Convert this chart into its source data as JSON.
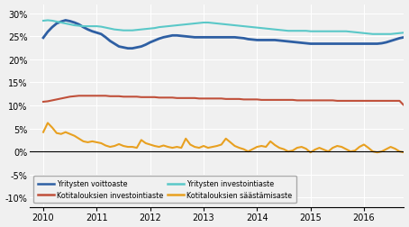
{
  "ylim": [
    -0.12,
    0.32
  ],
  "yticks": [
    -0.1,
    -0.05,
    0.0,
    0.05,
    0.1,
    0.15,
    0.2,
    0.25,
    0.3
  ],
  "xlim": [
    2009.75,
    2016.75
  ],
  "xticks": [
    2010,
    2011,
    2012,
    2013,
    2014,
    2015,
    2016
  ],
  "bg_color": "#f0f0f0",
  "grid_color": "#ffffff",
  "series": {
    "Yritysten voittoaste": {
      "color": "#2e5fa3",
      "lw": 2.0,
      "data": [
        0.247,
        0.26,
        0.27,
        0.278,
        0.282,
        0.285,
        0.283,
        0.28,
        0.276,
        0.27,
        0.265,
        0.261,
        0.258,
        0.255,
        0.248,
        0.24,
        0.234,
        0.228,
        0.226,
        0.224,
        0.224,
        0.226,
        0.228,
        0.232,
        0.237,
        0.241,
        0.245,
        0.248,
        0.25,
        0.252,
        0.252,
        0.251,
        0.25,
        0.249,
        0.248,
        0.248,
        0.248,
        0.248,
        0.248,
        0.248,
        0.248,
        0.248,
        0.248,
        0.248,
        0.247,
        0.246,
        0.244,
        0.243,
        0.242,
        0.242,
        0.242,
        0.242,
        0.242,
        0.241,
        0.24,
        0.239,
        0.238,
        0.237,
        0.236,
        0.235,
        0.234,
        0.234,
        0.234,
        0.234,
        0.234,
        0.234,
        0.234,
        0.234,
        0.234,
        0.234,
        0.234,
        0.234,
        0.234,
        0.234,
        0.234,
        0.234,
        0.235,
        0.237,
        0.24,
        0.243,
        0.246,
        0.248,
        0.249,
        0.25,
        0.25,
        0.25,
        0.25,
        0.25,
        0.25,
        0.25,
        0.25,
        0.25,
        0.25,
        0.25,
        0.251,
        0.252,
        0.253,
        0.254,
        0.255,
        0.256,
        0.257,
        0.258,
        0.259,
        0.26,
        0.261,
        0.262,
        0.263,
        0.264
      ]
    },
    "Yritysten investointiaste": {
      "color": "#5ac8c8",
      "lw": 1.5,
      "data": [
        0.284,
        0.285,
        0.284,
        0.282,
        0.28,
        0.278,
        0.276,
        0.274,
        0.273,
        0.272,
        0.272,
        0.272,
        0.272,
        0.271,
        0.269,
        0.267,
        0.265,
        0.264,
        0.263,
        0.263,
        0.263,
        0.264,
        0.265,
        0.266,
        0.267,
        0.268,
        0.27,
        0.271,
        0.272,
        0.273,
        0.274,
        0.275,
        0.276,
        0.277,
        0.278,
        0.279,
        0.28,
        0.28,
        0.279,
        0.278,
        0.277,
        0.276,
        0.275,
        0.274,
        0.273,
        0.272,
        0.271,
        0.27,
        0.269,
        0.268,
        0.267,
        0.266,
        0.265,
        0.264,
        0.263,
        0.262,
        0.262,
        0.262,
        0.262,
        0.262,
        0.261,
        0.261,
        0.261,
        0.261,
        0.261,
        0.261,
        0.261,
        0.261,
        0.261,
        0.26,
        0.259,
        0.258,
        0.257,
        0.256,
        0.255,
        0.255,
        0.255,
        0.255,
        0.255,
        0.256,
        0.257,
        0.258,
        0.259,
        0.26,
        0.261,
        0.262,
        0.262,
        0.263,
        0.264,
        0.265,
        0.266,
        0.266,
        0.266,
        0.266,
        0.266,
        0.266,
        0.266,
        0.266,
        0.266,
        0.266,
        0.266,
        0.266,
        0.266,
        0.266,
        0.266,
        0.266,
        0.266,
        0.267
      ]
    },
    "Kotitalouksien investointiaste": {
      "color": "#c0503a",
      "lw": 1.5,
      "data": [
        0.108,
        0.109,
        0.111,
        0.113,
        0.115,
        0.117,
        0.119,
        0.12,
        0.121,
        0.121,
        0.121,
        0.121,
        0.121,
        0.121,
        0.121,
        0.12,
        0.12,
        0.12,
        0.119,
        0.119,
        0.119,
        0.119,
        0.118,
        0.118,
        0.118,
        0.118,
        0.117,
        0.117,
        0.117,
        0.117,
        0.116,
        0.116,
        0.116,
        0.116,
        0.116,
        0.115,
        0.115,
        0.115,
        0.115,
        0.115,
        0.115,
        0.114,
        0.114,
        0.114,
        0.114,
        0.113,
        0.113,
        0.113,
        0.113,
        0.112,
        0.112,
        0.112,
        0.112,
        0.112,
        0.112,
        0.112,
        0.112,
        0.111,
        0.111,
        0.111,
        0.111,
        0.111,
        0.111,
        0.111,
        0.111,
        0.111,
        0.11,
        0.11,
        0.11,
        0.11,
        0.11,
        0.11,
        0.11,
        0.11,
        0.11,
        0.11,
        0.11,
        0.11,
        0.11,
        0.11,
        0.11,
        0.1,
        0.1,
        0.1,
        0.101,
        0.102,
        0.103,
        0.104,
        0.105,
        0.106,
        0.107,
        0.108,
        0.109,
        0.11,
        0.111,
        0.112,
        0.113,
        0.114,
        0.114,
        0.114,
        0.113,
        0.113,
        0.113,
        0.113,
        0.113,
        0.113,
        0.114,
        0.115
      ]
    },
    "Kotitalouksien säästämisaste": {
      "color": "#e8a020",
      "lw": 1.5,
      "data": [
        0.042,
        0.062,
        0.052,
        0.04,
        0.038,
        0.042,
        0.038,
        0.034,
        0.028,
        0.022,
        0.02,
        0.022,
        0.02,
        0.018,
        0.013,
        0.01,
        0.012,
        0.016,
        0.012,
        0.01,
        0.01,
        0.008,
        0.025,
        0.018,
        0.015,
        0.012,
        0.01,
        0.013,
        0.01,
        0.008,
        0.01,
        0.008,
        0.028,
        0.015,
        0.01,
        0.008,
        0.012,
        0.008,
        0.01,
        0.012,
        0.015,
        0.028,
        0.02,
        0.012,
        0.008,
        0.005,
        0.0,
        0.005,
        0.01,
        0.012,
        0.01,
        0.022,
        0.014,
        0.008,
        0.005,
        0.0,
        0.002,
        0.008,
        0.01,
        0.006,
        -0.002,
        0.004,
        0.008,
        0.004,
        0.0,
        0.008,
        0.012,
        0.01,
        0.005,
        0.0,
        0.002,
        0.01,
        0.015,
        0.008,
        0.0,
        -0.002,
        0.0,
        0.005,
        0.01,
        0.006,
        0.0,
        -0.002,
        0.0,
        0.004,
        0.01,
        0.005,
        0.0,
        -0.002,
        0.0,
        0.004,
        0.012,
        0.008,
        0.004,
        0.0,
        -0.002,
        0.0,
        0.0,
        0.002,
        0.005,
        0.008,
        0.015,
        0.01,
        0.004,
        0.0,
        -0.002,
        0.0,
        0.005,
        0.008
      ]
    }
  },
  "legend": [
    {
      "label": "Yritysten voittoaste",
      "color": "#2e5fa3"
    },
    {
      "label": "Kotitalouksien investointiaste",
      "color": "#c0503a"
    },
    {
      "label": "Yritysten investointiaste",
      "color": "#5ac8c8"
    },
    {
      "label": "Kotitalouksien säästämisaste",
      "color": "#e8a020"
    }
  ]
}
